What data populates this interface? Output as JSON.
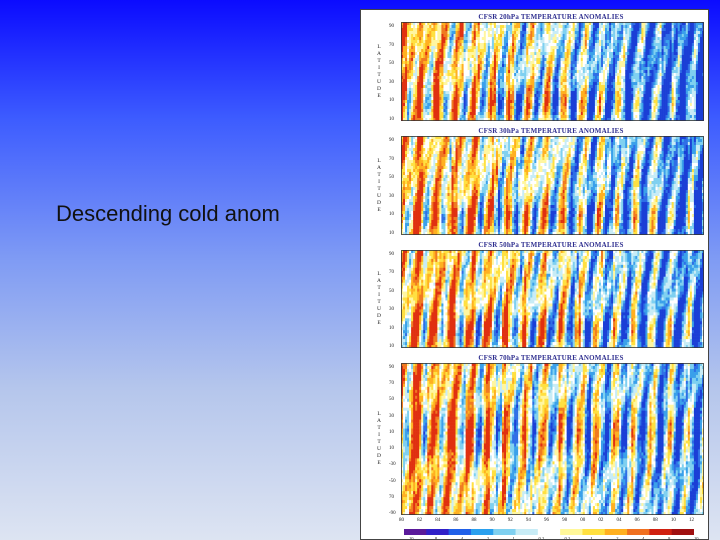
{
  "slide": {
    "caption": "Descending cold anom"
  },
  "colors": {
    "cold_deep": "#1b3fd6",
    "cold": "#3aa0ea",
    "cool": "#9fdcf2",
    "neutral": "#ffffff",
    "warm_light": "#fff27a",
    "warm": "#ffb020",
    "hot": "#e03010"
  },
  "chart_data": [
    {
      "type": "heatmap",
      "title": "CFSR 20hPa TEMPERATURE ANOMALIES",
      "ylabel": "LATITUDE",
      "yticks": [
        "90",
        "70",
        "50",
        "30",
        "10",
        "10"
      ],
      "ylabel_letters": [
        "L",
        "A",
        "T",
        "I",
        "T",
        "U",
        "D",
        "E"
      ],
      "pattern": {
        "period_columns": 9,
        "cold_bias": 0.35
      }
    },
    {
      "type": "heatmap",
      "title": "CFSR 30hPa TEMPERATURE ANOMALIES",
      "ylabel": "LATITUDE",
      "yticks": [
        "90",
        "70",
        "50",
        "30",
        "10",
        "10"
      ],
      "ylabel_letters": [
        "L",
        "A",
        "T",
        "I",
        "T",
        "U",
        "D",
        "E"
      ],
      "pattern": {
        "period_columns": 9,
        "cold_bias": 0.2
      }
    },
    {
      "type": "heatmap",
      "title": "CFSR 50hPa TEMPERATURE ANOMALIES",
      "ylabel": "LATITUDE",
      "yticks": [
        "90",
        "70",
        "50",
        "30",
        "10",
        "10"
      ],
      "ylabel_letters": [
        "L",
        "A",
        "T",
        "I",
        "T",
        "U",
        "D",
        "E"
      ],
      "pattern": {
        "period_columns": 9,
        "cold_bias": 0.1
      }
    },
    {
      "type": "heatmap",
      "title": "CFSR 70hPa TEMPERATURE ANOMALIES",
      "ylabel": "LATITUDE",
      "yticks": [
        "90",
        "70",
        "50",
        "30",
        "10",
        "10",
        "-30",
        "-50",
        "70",
        "-90"
      ],
      "ylabel_letters": [
        "L",
        "A",
        "T",
        "I",
        "T",
        "U",
        "D",
        "E"
      ],
      "xticks": [
        "80",
        "82",
        "84",
        "86",
        "88",
        "90",
        "92",
        "94",
        "96",
        "98",
        "00",
        "02",
        "04",
        "06",
        "08",
        "10",
        "12"
      ],
      "pattern": {
        "period_columns": 9,
        "cold_bias": 0.0
      }
    }
  ],
  "colorbar": {
    "labels": [
      "10",
      "8",
      "4",
      "2",
      "1",
      "0.2",
      "0.2",
      "1",
      "2",
      "4",
      "8",
      "10"
    ],
    "colors": [
      "#5a1a9a",
      "#3020c8",
      "#2060e8",
      "#2aa0ee",
      "#7fd0f0",
      "#c8ecf6",
      "#ffffff",
      "#fff89a",
      "#ffe040",
      "#ffb020",
      "#f07020",
      "#d02010",
      "#a01010"
    ]
  }
}
